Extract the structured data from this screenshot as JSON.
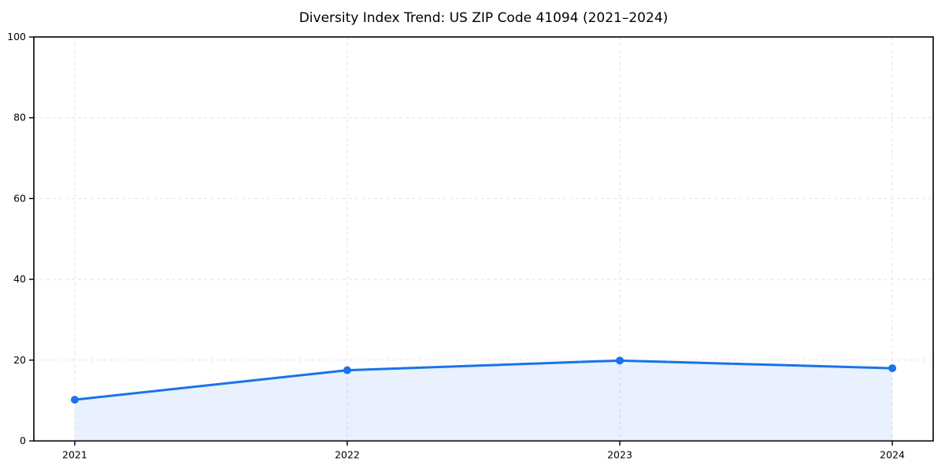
{
  "chart_data": {
    "type": "area",
    "title": "Diversity Index Trend: US ZIP Code 41094 (2021–2024)",
    "series_name": "Diversity Index",
    "x": [
      2021,
      2022,
      2023,
      2024
    ],
    "x_tick_labels": [
      "2021",
      "2022",
      "2023",
      "2024"
    ],
    "values": [
      10.2,
      17.5,
      19.9,
      18.0
    ],
    "xlabel": "",
    "ylabel": "",
    "ylim": [
      0,
      100
    ],
    "y_ticks": [
      0,
      20,
      40,
      60,
      80,
      100
    ],
    "y_tick_labels": [
      "0",
      "20",
      "40",
      "60",
      "80",
      "100"
    ],
    "grid": "dashed-both-axes",
    "legend_position": "none",
    "marker": "circle"
  },
  "colors": {
    "line": "#1a73e8",
    "marker": "#1a73e8",
    "area_fill": "rgba(26,115,232,0.10)",
    "grid": "#e2e2e2",
    "spine": "#000000",
    "tick_text": "#000000",
    "background": "#ffffff"
  }
}
